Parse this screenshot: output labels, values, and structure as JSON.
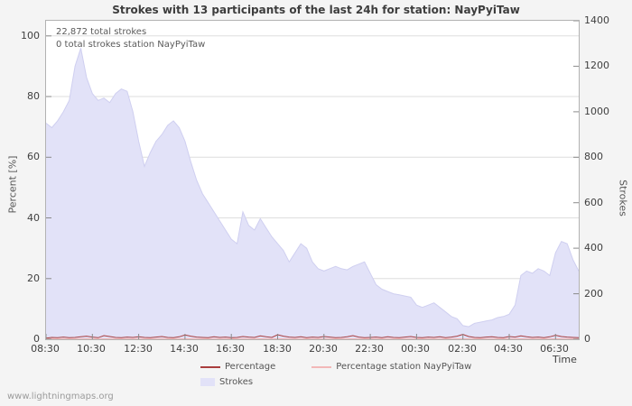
{
  "page": {
    "title": "Strokes with 13 participants of the last 24h for station: NayPyiTaw",
    "watermark": "www.lightningmaps.org"
  },
  "annotations": {
    "total_strokes": "22,872 total strokes",
    "station_total": "0 total strokes station NayPyiTaw"
  },
  "axes": {
    "left_label": "Percent   [%]",
    "right_label": "Strokes",
    "x_label": "Time",
    "left_ticks": [
      0,
      20,
      40,
      60,
      80,
      100
    ],
    "right_ticks": [
      0,
      200,
      400,
      600,
      800,
      1000,
      1200,
      1400
    ],
    "x_ticks": [
      "08:30",
      "10:30",
      "12:30",
      "14:30",
      "16:30",
      "18:30",
      "20:30",
      "22:30",
      "00:30",
      "02:30",
      "04:30",
      "06:30"
    ]
  },
  "legend": [
    {
      "label": "Percentage",
      "color": "#a93e3e",
      "type": "line"
    },
    {
      "label": "Percentage station NayPyiTaw",
      "color": "#f2b8b8",
      "type": "line"
    },
    {
      "label": "Strokes",
      "color": "#e2e2f8",
      "type": "area"
    }
  ],
  "colors": {
    "area_fill": "#e2e2f8",
    "area_edge": "#cfcff0",
    "percentage_line": "#a93e3e",
    "station_line": "#f2b8b8",
    "grid": "#dedede",
    "axis_border": "#b2b2b2"
  },
  "chart_data": {
    "type": "area",
    "title": "Strokes with 13 participants of the last 24h for station: NayPyiTaw",
    "xlabel": "Time",
    "left_axis_label": "Percent [%]",
    "right_axis_label": "Strokes",
    "left_ylim": [
      0,
      100
    ],
    "left_axis_top": 105,
    "right_ylim": [
      0,
      1400
    ],
    "grid": true,
    "legend_position": "bottom",
    "x_start": "08:30",
    "interval_minutes": 15,
    "x_tick_interval_minutes": 120,
    "series": [
      {
        "name": "Strokes",
        "axis": "right",
        "values": [
          950,
          930,
          960,
          1000,
          1050,
          1200,
          1280,
          1150,
          1080,
          1050,
          1060,
          1040,
          1080,
          1100,
          1090,
          1000,
          870,
          760,
          820,
          870,
          900,
          940,
          960,
          930,
          870,
          780,
          700,
          640,
          600,
          560,
          520,
          480,
          440,
          420,
          560,
          500,
          480,
          530,
          490,
          450,
          420,
          390,
          340,
          380,
          420,
          400,
          340,
          310,
          300,
          310,
          320,
          310,
          305,
          320,
          330,
          340,
          290,
          240,
          220,
          210,
          200,
          195,
          190,
          185,
          150,
          140,
          150,
          160,
          140,
          120,
          100,
          90,
          60,
          55,
          70,
          75,
          80,
          85,
          95,
          100,
          110,
          150,
          280,
          300,
          290,
          310,
          300,
          280,
          380,
          430,
          420,
          350,
          300
        ]
      },
      {
        "name": "Percentage",
        "axis": "left",
        "values": [
          0.4,
          0.6,
          0.5,
          0.7,
          0.5,
          0.6,
          0.8,
          1.0,
          0.7,
          0.5,
          1.2,
          0.9,
          0.6,
          0.5,
          0.7,
          0.6,
          0.8,
          0.6,
          0.5,
          0.7,
          0.9,
          0.6,
          0.5,
          0.8,
          1.4,
          1.0,
          0.7,
          0.6,
          0.5,
          0.8,
          0.6,
          0.7,
          0.5,
          0.6,
          0.9,
          0.7,
          0.6,
          1.1,
          0.8,
          0.6,
          1.5,
          1.0,
          0.7,
          0.6,
          0.8,
          0.5,
          0.7,
          0.6,
          0.9,
          0.7,
          0.5,
          0.6,
          0.8,
          1.2,
          0.7,
          0.5,
          0.6,
          0.7,
          0.5,
          0.8,
          0.6,
          0.5,
          0.7,
          0.9,
          0.6,
          0.5,
          0.7,
          0.6,
          0.8,
          0.5,
          0.7,
          1.0,
          1.6,
          0.9,
          0.6,
          0.5,
          0.7,
          0.8,
          0.6,
          0.5,
          0.9,
          0.7,
          1.1,
          0.8,
          0.6,
          0.7,
          0.5,
          0.8,
          1.3,
          0.9,
          0.7,
          0.6,
          0.5
        ]
      },
      {
        "name": "Percentage station NayPyiTaw",
        "axis": "left",
        "constant": 0
      }
    ]
  }
}
